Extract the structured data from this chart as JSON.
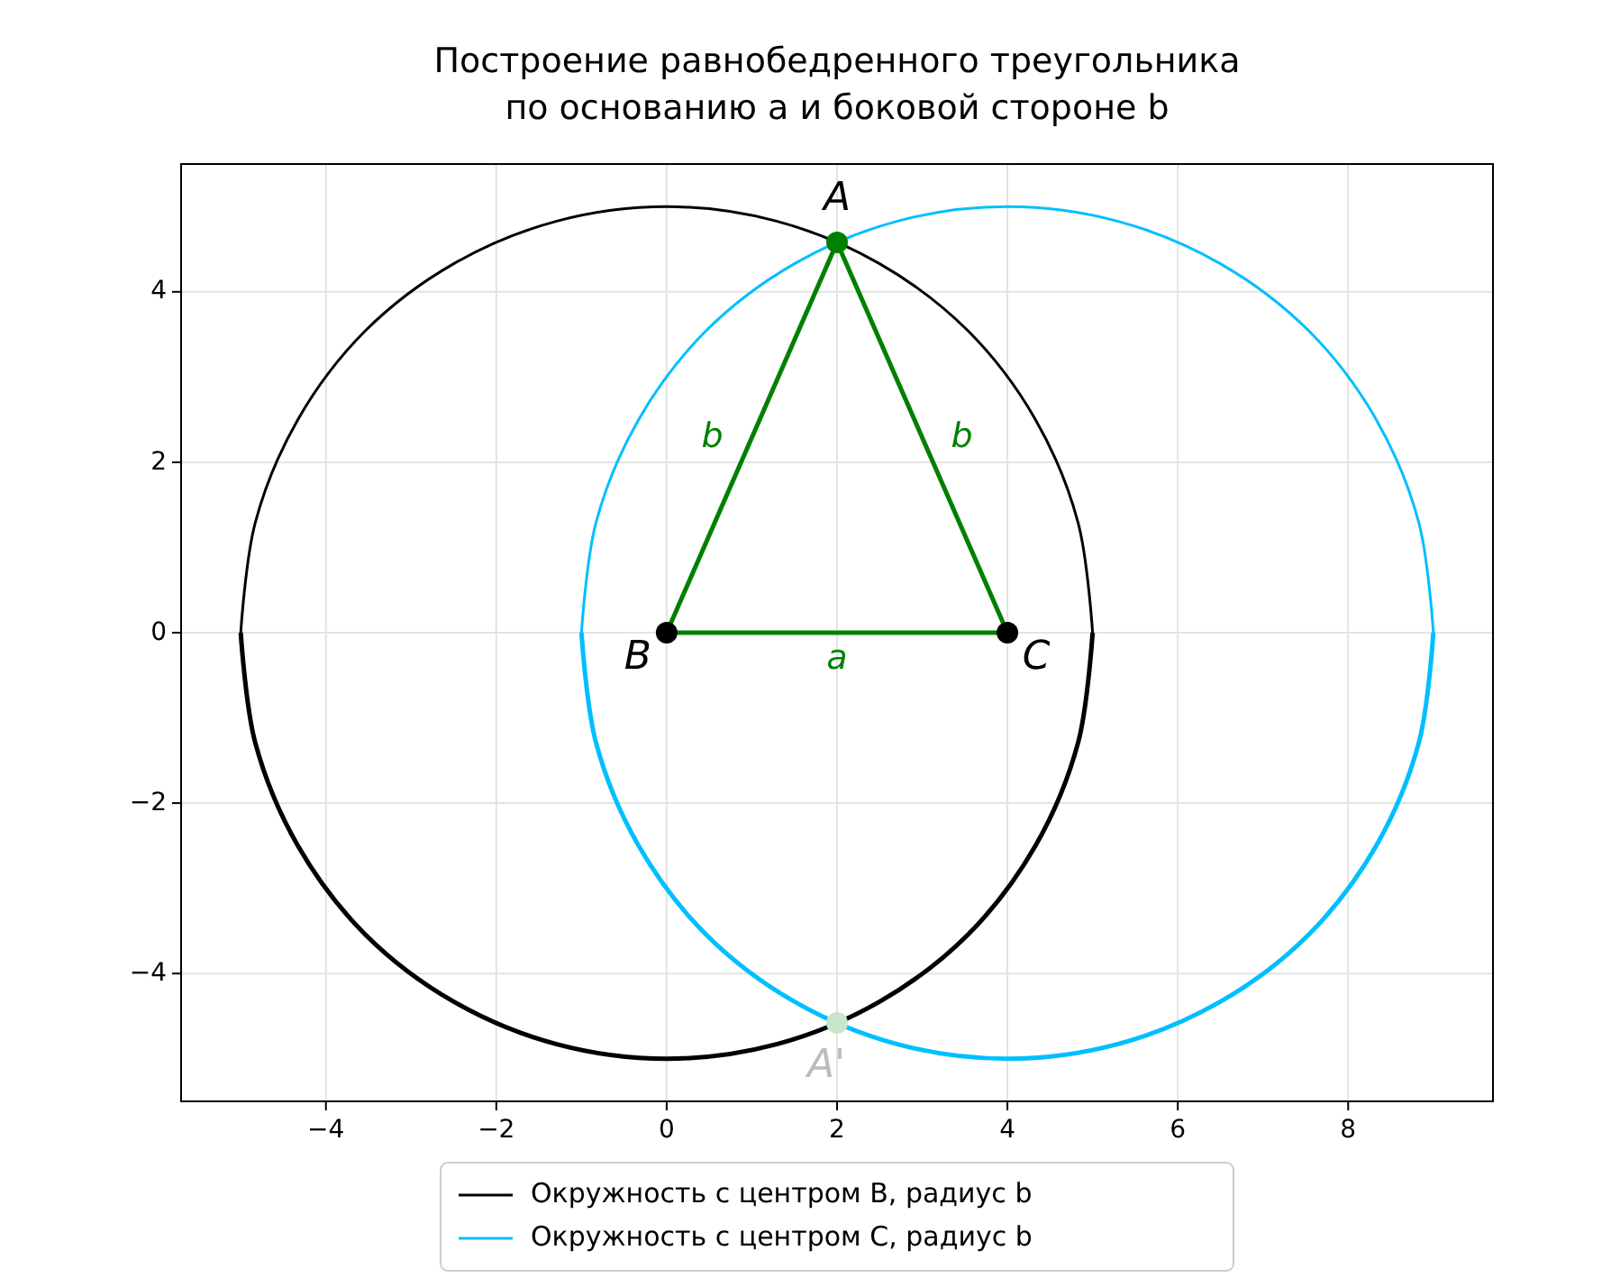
{
  "chart_data": {
    "type": "line",
    "title": "Построение равнобедренного треугольника\nпо основанию a и боковой стороне b",
    "xlim": [
      -5.7,
      9.7
    ],
    "ylim": [
      -5.5,
      5.5
    ],
    "xticks": [
      {
        "value": -4,
        "label": "−4"
      },
      {
        "value": -2,
        "label": "−2"
      },
      0,
      2,
      4,
      6,
      8
    ],
    "yticks": [
      {
        "value": -4,
        "label": "−4"
      },
      {
        "value": -2,
        "label": "−2"
      },
      0,
      2,
      4
    ],
    "grid": true,
    "legend": "bottom",
    "series": [
      {
        "name": "Окружность с центром B, радиус b",
        "color": "#000000",
        "x": [
          -5,
          -4.83,
          -4.33,
          -3.54,
          -2.5,
          -1.29,
          0,
          1.29,
          2.5,
          3.54,
          4.33,
          4.83,
          5
        ],
        "values": [
          0,
          1.29,
          2.5,
          3.54,
          4.33,
          4.83,
          5,
          4.83,
          4.33,
          3.54,
          2.5,
          1.29,
          0
        ]
      },
      {
        "color": "#000000",
        "x": [
          -5,
          -4.83,
          -4.33,
          -3.54,
          -2.5,
          -1.29,
          0,
          1.29,
          2.5,
          3.54,
          4.33,
          4.83,
          5
        ],
        "values": [
          0,
          -1.29,
          -2.5,
          -3.54,
          -4.33,
          -4.83,
          -5,
          -4.83,
          -4.33,
          -3.54,
          -2.5,
          -1.29,
          0
        ]
      },
      {
        "name": "Окружность с центром C, радиус b",
        "color": "#00bfff",
        "x": [
          -1,
          -0.83,
          -0.33,
          0.46,
          1.5,
          2.71,
          4,
          5.29,
          6.5,
          7.54,
          8.33,
          8.83,
          9
        ],
        "values": [
          0,
          1.29,
          2.5,
          3.54,
          4.33,
          4.83,
          5,
          4.83,
          4.33,
          3.54,
          2.5,
          1.29,
          0
        ]
      },
      {
        "color": "#00bfff",
        "x": [
          -1,
          -0.83,
          -0.33,
          0.46,
          1.5,
          2.71,
          4,
          5.29,
          6.5,
          7.54,
          8.33,
          8.83,
          9
        ],
        "values": [
          0,
          -1.29,
          -2.5,
          -3.54,
          -4.33,
          -4.83,
          -5,
          -4.83,
          -4.33,
          -3.54,
          -2.5,
          -1.29,
          0
        ]
      },
      {
        "color": "#008000",
        "x": [
          0,
          2,
          4
        ],
        "values": [
          0,
          4.58,
          0
        ]
      },
      {
        "color": "#008000",
        "x": [
          0,
          4
        ],
        "values": [
          0,
          0
        ]
      },
      {
        "type": "scatter",
        "colors": [
          "#008000",
          "#000000",
          "#000000",
          "#c8e6c9"
        ],
        "x": [
          2,
          0,
          4,
          2
        ],
        "values": [
          4.58,
          0,
          0,
          -4.58
        ]
      }
    ],
    "annotations": [
      {
        "text": "A",
        "x": 2,
        "y": 4.58
      },
      {
        "text": "B",
        "x": 0,
        "y": 0
      },
      {
        "text": "C",
        "x": 4,
        "y": 0
      },
      {
        "text": "A'",
        "x": 2,
        "y": -4.58
      },
      "b",
      "b",
      "a"
    ]
  }
}
